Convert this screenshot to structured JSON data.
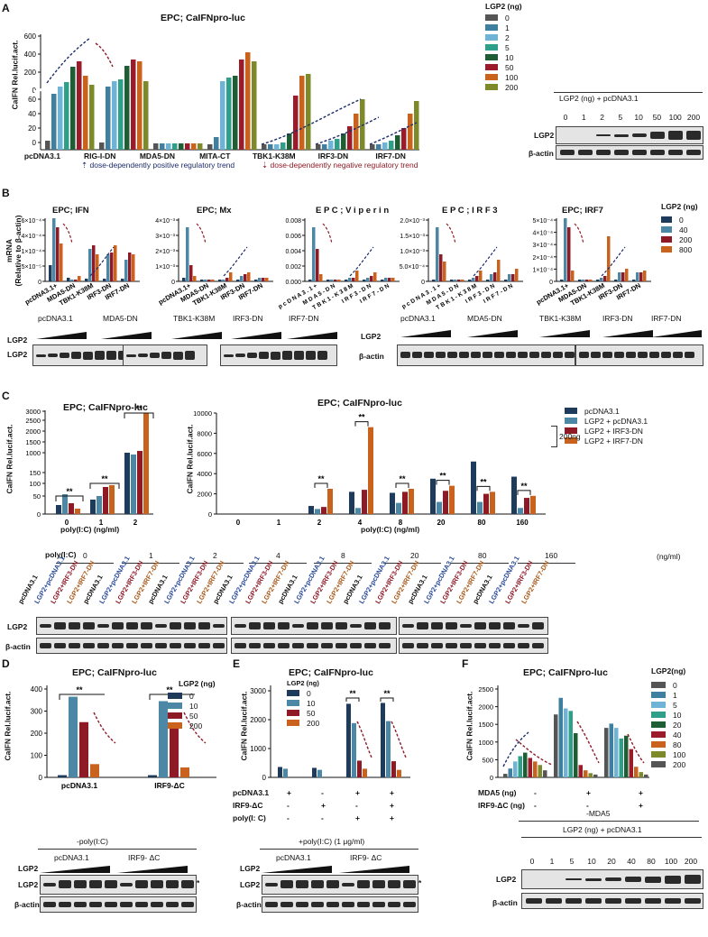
{
  "panel_labels": [
    "A",
    "B",
    "C",
    "D",
    "E",
    "F"
  ],
  "A": {
    "title": "EPC; CaIFNpro-luc",
    "ylabel": "CaIFN Rel.lucif.act.",
    "legend_title": "LGP2 (ng)",
    "doses": [
      "0",
      "1",
      "2",
      "5",
      "10",
      "50",
      "100",
      "200"
    ],
    "colors": [
      "#555555",
      "#3f7f9f",
      "#6fb3d6",
      "#2ea08a",
      "#1f5d34",
      "#9b1b2a",
      "#c8621d",
      "#7e8a2a"
    ],
    "groups": [
      "pcDNA3.1",
      "RIG-I-DN",
      "MDA5-DN",
      "MITA-CT",
      "TBK1-K38M",
      "IRF3-DN",
      "IRF7-DN"
    ],
    "note_pos": "dose-dependently  positive regulatory trend",
    "note_neg": "dose-dependently  negative regulatory trend",
    "blot_title": "LGP2 (ng) + pcDNA3.1",
    "blot_lanes": [
      "0",
      "1",
      "2",
      "5",
      "10",
      "50",
      "100",
      "200"
    ],
    "rows": [
      "LGP2",
      "β-actin"
    ]
  },
  "B": {
    "ylabel1": "mRNA",
    "ylabel2": "(Relative to β-actin)",
    "titles": [
      "EPC; IFN",
      "EPC; Mx",
      "E P C ; V i p e r i n",
      "E P C ; I R F 3",
      "EPC; IRF7"
    ],
    "yticks": [
      [
        "6×10⁻⁴",
        "4×10⁻⁴",
        "1×10⁻⁴",
        "5×10⁻⁵",
        "0"
      ],
      [
        "4×10⁻³",
        "3×10⁻³",
        "2×10⁻³",
        "1×10⁻³",
        "0"
      ],
      [
        "0.008",
        "0.006",
        "0.004",
        "0.002",
        "0.000"
      ],
      [
        "2.0×10⁻³",
        "1.5×10⁻³",
        "1.0×10⁻³",
        "5.0×10⁻⁴",
        "0"
      ],
      [
        "5×10⁻⁴",
        "4×10⁻⁴",
        "3×10⁻⁴",
        "2×10⁻⁴",
        "1×10⁻⁴",
        "0"
      ]
    ],
    "xgroups": [
      "pcDNA3.1+",
      "MDA5-DN",
      "TBK1-K38M",
      "IRF3-DN",
      "IRF7-DN"
    ],
    "xgroups_spaced": [
      "p c D N A 3 . 1 +",
      "M D A 5 - D N",
      "T B K 1 - K 3 8 M",
      "I R F 3 - D N",
      "I R F 7 - D N"
    ],
    "legend_title": "LGP2 (ng)",
    "doses": [
      "0",
      "40",
      "200",
      "800"
    ],
    "colors": [
      "#1f3b5c",
      "#4c87a6",
      "#8e1a26",
      "#c8621d"
    ],
    "blot_groups": [
      "pcDNA3.1",
      "MDA5-DN",
      "TBK1-K38M",
      "IRF3-DN",
      "IRF7-DN"
    ],
    "rows": [
      "LGP2",
      "β-actin"
    ]
  },
  "C": {
    "title": "EPC; CaIFNpro-luc",
    "ylabel": "CaIFN Rel.lucif.act.",
    "xlabel": "poly(I:C) (ng/ml)",
    "left_xticks": [
      "0",
      "1",
      "2"
    ],
    "left_yticks": [
      "3000",
      "2500",
      "2000",
      "1500",
      "1000",
      "150",
      "100",
      "50",
      "0"
    ],
    "right_xticks": [
      "0",
      "1",
      "2",
      "4",
      "8",
      "20",
      "80",
      "160"
    ],
    "right_yticks": [
      "10000",
      "8000",
      "6000",
      "4000",
      "2000",
      "0"
    ],
    "legend": [
      "pcDNA3.1",
      "LGP2 + pcDNA3.1",
      "LGP2 + IRF3-DN",
      "LGP2 + IRF7-DN"
    ],
    "legend_note": "200ng",
    "colors": [
      "#1f3b5c",
      "#4c87a6",
      "#8e1a26",
      "#c8621d"
    ],
    "sig": "**",
    "blot_head": "poly(I:C)",
    "blot_unit": "(ng/ml)",
    "blot_conc": [
      "0",
      "1",
      "2",
      "4",
      "8",
      "20",
      "80",
      "160"
    ],
    "lane_labels": [
      "pcDNA3.1",
      "LGP2+pcDNA3.1",
      "LGP2+IRF3-DN",
      "LGP2+IRF7-DN"
    ],
    "lane_colors": [
      "#111111",
      "#2a4a9a",
      "#8e1a26",
      "#a85a1a"
    ],
    "rows": [
      "LGP2",
      "β-actin"
    ]
  },
  "D": {
    "title": "EPC; CaIFNpro-luc",
    "ylabel": "CaIFN Rel.lucif.act.",
    "yticks": [
      "400",
      "300",
      "200",
      "100",
      "0"
    ],
    "groups": [
      "pcDNA3.1",
      "IRF9-ΔC"
    ],
    "legend_title": "LGP2 (ng)",
    "doses": [
      "0",
      "10",
      "50",
      "200"
    ],
    "colors": [
      "#1f3b5c",
      "#4c87a6",
      "#8e1a26",
      "#c8621d"
    ],
    "sig": "**",
    "blot_title": "-poly(I:C)",
    "blot_groups": [
      "pcDNA3.1",
      "IRF9- ΔC"
    ],
    "rows": [
      "LGP2",
      "LGP2",
      "β-actin"
    ],
    "star": "*"
  },
  "E": {
    "title": "EPC; CaIFNpro-luc",
    "ylabel": "CaIFN Rel.lucif.act.",
    "yticks": [
      "3000",
      "2000",
      "1000",
      "0"
    ],
    "legend_title": "LGP2 (ng)",
    "doses": [
      "0",
      "10",
      "50",
      "200"
    ],
    "colors": [
      "#1f3b5c",
      "#4c87a6",
      "#8e1a26",
      "#c8621d"
    ],
    "conditions": [
      {
        "label": "pcDNA3.1",
        "signs": [
          "+",
          "-",
          "+",
          "+"
        ]
      },
      {
        "label": "IRF9-ΔC",
        "signs": [
          "-",
          "+",
          "-",
          "+"
        ]
      },
      {
        "label": "poly(I: C)",
        "signs": [
          "-",
          "-",
          "+",
          "+"
        ]
      }
    ],
    "sig": "**",
    "blot_title": "+poly(I:C) (1 μg/ml)",
    "blot_groups": [
      "pcDNA3.1",
      "IRF9- ΔC"
    ],
    "rows": [
      "LGP2",
      "LGP2",
      "β-actin"
    ],
    "star": "*"
  },
  "F": {
    "title": "EPC; CaIFNpro-luc",
    "ylabel": "CaIFN Rel.lucif.act.",
    "yticks": [
      "2500",
      "2000",
      "1500",
      "1000",
      "500",
      "0"
    ],
    "legend_title": "LGP2(ng)",
    "doses": [
      "0",
      "1",
      "5",
      "10",
      "20",
      "40",
      "80",
      "100",
      "200"
    ],
    "colors": [
      "#555555",
      "#3f7f9f",
      "#6fb3d6",
      "#2ea08a",
      "#1f5d34",
      "#9b1b2a",
      "#c8621d",
      "#7e8a2a",
      "#555555"
    ],
    "conditions": [
      {
        "label": "MDA5 (ng)",
        "signs": [
          "-",
          "+",
          "+"
        ]
      },
      {
        "label": "IRF9-ΔC (ng)",
        "signs": [
          "-",
          "-",
          "+"
        ]
      }
    ],
    "blot_title": "-MDA5",
    "blot_sub": "LGP2 (ng) + pcDNA3.1",
    "blot_lanes": [
      "0",
      "1",
      "5",
      "10",
      "20",
      "40",
      "80",
      "100",
      "200"
    ],
    "rows": [
      "LGP2",
      "β-actin"
    ]
  }
}
